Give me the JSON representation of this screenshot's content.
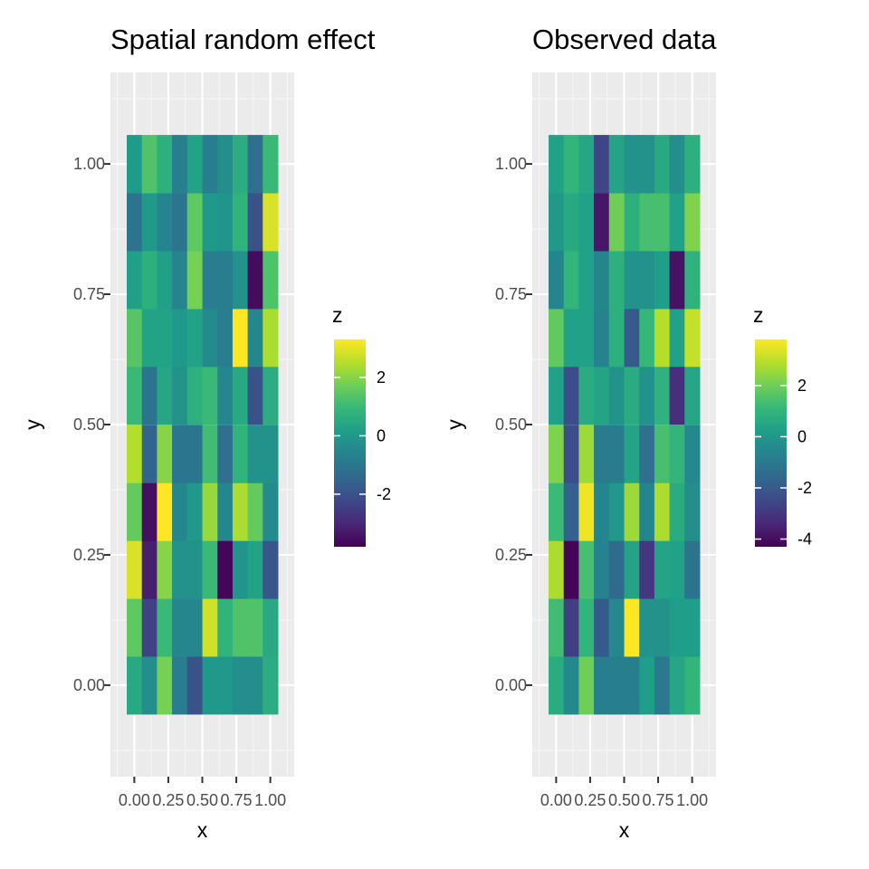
{
  "chart_data": [
    {
      "type": "heatmap",
      "title": "Spatial random effect",
      "xlabel": "x",
      "ylabel": "y",
      "x": [
        0.0,
        0.111,
        0.222,
        0.333,
        0.444,
        0.556,
        0.667,
        0.778,
        0.889,
        1.0
      ],
      "y": [
        0.0,
        0.111,
        0.222,
        0.333,
        0.444,
        0.556,
        0.667,
        0.778,
        0.889,
        1.0
      ],
      "xticks": [
        "0.00",
        "0.25",
        "0.50",
        "0.75",
        "1.00"
      ],
      "yticks": [
        "0.00",
        "0.25",
        "0.50",
        "0.75",
        "1.00"
      ],
      "legend": {
        "title": "z",
        "placement": "right",
        "breaks": [
          "2",
          "0",
          "-2"
        ],
        "min": -3.8,
        "max": 3.3
      },
      "z": [
        [
          0.5,
          -0.3,
          1.8,
          -0.8,
          -2.0,
          0.0,
          0.0,
          -0.3,
          -0.3,
          0.6
        ],
        [
          1.5,
          -2.4,
          1.0,
          -0.5,
          -0.5,
          2.8,
          0.8,
          1.3,
          1.3,
          0.5
        ],
        [
          2.9,
          -3.2,
          2.0,
          -0.2,
          -0.2,
          1.0,
          -3.7,
          -0.1,
          0.3,
          -1.9
        ],
        [
          1.6,
          -3.5,
          3.3,
          -0.5,
          0.0,
          2.2,
          -0.5,
          2.4,
          1.6,
          -0.4
        ],
        [
          2.5,
          -1.5,
          2.0,
          -1.0,
          -1.0,
          1.1,
          -1.2,
          0.8,
          -0.2,
          -0.2
        ],
        [
          1.0,
          -1.1,
          0.4,
          -0.2,
          0.7,
          1.0,
          -0.5,
          0.5,
          -2.0,
          0.6
        ],
        [
          1.4,
          0.3,
          0.3,
          0.0,
          0.3,
          -0.4,
          -0.8,
          3.3,
          -0.5,
          2.4
        ],
        [
          0.2,
          0.7,
          0.2,
          -0.6,
          1.8,
          -0.8,
          -0.8,
          -0.2,
          -3.6,
          1.3
        ],
        [
          -1.1,
          0.0,
          -0.6,
          -1.0,
          1.5,
          0.0,
          -0.1,
          0.8,
          -2.0,
          2.9
        ],
        [
          0.1,
          1.3,
          0.7,
          -0.8,
          0.3,
          -0.8,
          -0.3,
          0.6,
          -1.2,
          1.0
        ]
      ]
    },
    {
      "type": "heatmap",
      "title": "Observed data",
      "xlabel": "x",
      "ylabel": "y",
      "x": [
        0.0,
        0.111,
        0.222,
        0.333,
        0.444,
        0.556,
        0.667,
        0.778,
        0.889,
        1.0
      ],
      "y": [
        0.0,
        0.111,
        0.222,
        0.333,
        0.444,
        0.556,
        0.667,
        0.778,
        0.889,
        1.0
      ],
      "xticks": [
        "0.00",
        "0.25",
        "0.50",
        "0.75",
        "1.00"
      ],
      "yticks": [
        "0.00",
        "0.25",
        "0.50",
        "0.75",
        "1.00"
      ],
      "legend": {
        "title": "z",
        "placement": "right",
        "breaks": [
          "2",
          "0",
          "-2",
          "-4"
        ],
        "min": -4.3,
        "max": 3.8
      },
      "z": [
        [
          0.7,
          -0.5,
          2.0,
          -0.8,
          -0.8,
          -0.8,
          0.2,
          -1.0,
          0.5,
          1.0
        ],
        [
          1.3,
          -2.8,
          1.0,
          -2.0,
          -0.5,
          3.8,
          -0.2,
          -0.2,
          0.2,
          0.2
        ],
        [
          2.8,
          -4.2,
          1.4,
          -0.7,
          -1.5,
          0.4,
          -3.0,
          0.4,
          0.3,
          -1.2
        ],
        [
          1.2,
          -1.8,
          3.6,
          -0.6,
          0.0,
          2.6,
          -0.6,
          2.8,
          0.7,
          -0.3
        ],
        [
          2.2,
          -2.4,
          2.6,
          -0.9,
          -0.9,
          0.4,
          -1.3,
          1.4,
          1.0,
          -0.5
        ],
        [
          0.3,
          -2.4,
          0.7,
          0.4,
          -0.2,
          0.7,
          -0.2,
          0.9,
          -3.2,
          0.5
        ],
        [
          1.8,
          0.3,
          0.3,
          -0.7,
          0.8,
          -2.0,
          1.1,
          2.9,
          0.3,
          3.1
        ],
        [
          -0.6,
          1.0,
          0.3,
          -0.6,
          0.8,
          -0.2,
          -0.2,
          0.2,
          -3.9,
          0.9
        ],
        [
          0.0,
          0.6,
          0.3,
          -3.8,
          2.0,
          0.8,
          1.4,
          1.4,
          0.3,
          2.2
        ],
        [
          0.3,
          1.0,
          0.5,
          -2.6,
          0.4,
          -0.2,
          -0.2,
          0.6,
          -0.3,
          0.8
        ]
      ]
    }
  ]
}
